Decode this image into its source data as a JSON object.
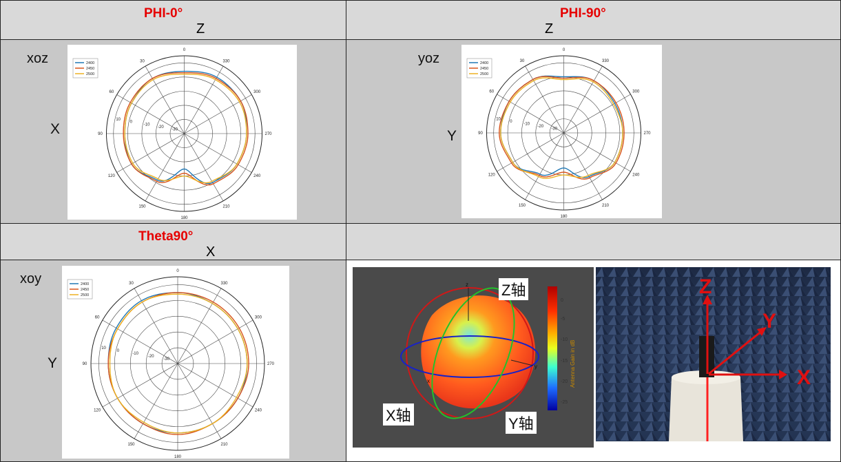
{
  "table": {
    "row1": {
      "left_title": "PHI-0°",
      "left_axis_top": "Z",
      "right_title": "PHI-90°",
      "right_axis_top": "Z"
    },
    "row3": {
      "left_title": "Theta90°",
      "left_axis_top": "X"
    }
  },
  "plots": [
    {
      "id": "xoz",
      "plane_label": "xoz",
      "side_label": "X"
    },
    {
      "id": "yoz",
      "plane_label": "yoz",
      "side_label": "Y"
    },
    {
      "id": "xoy",
      "plane_label": "xoy",
      "side_label": "Y"
    }
  ],
  "chart_data": [
    {
      "type": "polar",
      "angle_ticks": [
        "0",
        "30",
        "60",
        "90",
        "120",
        "150",
        "180",
        "210",
        "240",
        "270",
        "300",
        "330"
      ],
      "radial_ticks": [
        "10",
        "0",
        "-10",
        "-20",
        "-30"
      ],
      "rlim": [
        -40,
        15
      ],
      "legend": "top-left",
      "series": [
        {
          "name": "2400",
          "color": "#1f77b4",
          "values_deg": [
            0,
            30,
            60,
            90,
            120,
            150,
            180,
            210,
            240,
            270,
            300,
            330
          ],
          "values_db": [
            4,
            5,
            3,
            2,
            3,
            -2,
            -15,
            0,
            3,
            4,
            6,
            6
          ]
        },
        {
          "name": "2450",
          "color": "#d95319",
          "values_deg": [
            0,
            30,
            60,
            90,
            120,
            150,
            180,
            210,
            240,
            270,
            300,
            330
          ],
          "values_db": [
            3,
            5,
            4,
            3,
            3,
            -1,
            -12,
            1,
            4,
            5,
            6,
            5
          ]
        },
        {
          "name": "2500",
          "color": "#edb120",
          "values_deg": [
            0,
            30,
            60,
            90,
            120,
            150,
            180,
            210,
            240,
            270,
            300,
            330
          ],
          "values_db": [
            2,
            4,
            3,
            2,
            2,
            -3,
            -10,
            -1,
            3,
            4,
            5,
            4
          ]
        }
      ]
    },
    {
      "type": "polar",
      "angle_ticks": [
        "0",
        "30",
        "60",
        "90",
        "120",
        "150",
        "180",
        "210",
        "240",
        "270",
        "300",
        "330"
      ],
      "radial_ticks": [
        "10",
        "0",
        "-10",
        "-20",
        "-30"
      ],
      "rlim": [
        -40,
        15
      ],
      "legend": "top-left",
      "series": [
        {
          "name": "2400",
          "color": "#1f77b4",
          "values_deg": [
            0,
            30,
            60,
            90,
            120,
            150,
            180,
            210,
            240,
            270,
            300,
            330
          ],
          "values_db": [
            0,
            4,
            5,
            5,
            2,
            -6,
            -15,
            -4,
            2,
            2,
            2,
            3
          ]
        },
        {
          "name": "2450",
          "color": "#d95319",
          "values_deg": [
            0,
            30,
            60,
            90,
            120,
            150,
            180,
            210,
            240,
            270,
            300,
            330
          ],
          "values_db": [
            -1,
            4,
            5,
            6,
            3,
            -5,
            -12,
            -3,
            3,
            3,
            3,
            3
          ]
        },
        {
          "name": "2500",
          "color": "#edb120",
          "values_deg": [
            0,
            30,
            60,
            90,
            120,
            150,
            180,
            210,
            240,
            270,
            300,
            330
          ],
          "values_db": [
            -2,
            3,
            4,
            5,
            2,
            -4,
            -10,
            -5,
            2,
            2,
            1,
            2
          ]
        }
      ]
    },
    {
      "type": "polar",
      "angle_ticks": [
        "0",
        "30",
        "60",
        "90",
        "120",
        "150",
        "180",
        "210",
        "240",
        "270",
        "300",
        "330"
      ],
      "radial_ticks": [
        "10",
        "0",
        "-10",
        "-20",
        "-30"
      ],
      "rlim": [
        -40,
        15
      ],
      "legend": "top-left",
      "series": [
        {
          "name": "2400",
          "color": "#1f77b4",
          "values_deg": [
            0,
            30,
            60,
            90,
            120,
            150,
            180,
            210,
            240,
            270,
            300,
            330
          ],
          "values_db": [
            5,
            6,
            5,
            4,
            4,
            4,
            4,
            4,
            4,
            4,
            4,
            4
          ]
        },
        {
          "name": "2450",
          "color": "#d95319",
          "values_deg": [
            0,
            30,
            60,
            90,
            120,
            150,
            180,
            210,
            240,
            270,
            300,
            330
          ],
          "values_db": [
            5,
            5,
            4,
            4,
            4,
            4,
            5,
            4,
            4,
            5,
            5,
            5
          ]
        },
        {
          "name": "2500",
          "color": "#edb120",
          "values_deg": [
            0,
            30,
            60,
            90,
            120,
            150,
            180,
            210,
            240,
            270,
            300,
            330
          ],
          "values_db": [
            4,
            5,
            4,
            3,
            4,
            3,
            4,
            4,
            3,
            4,
            4,
            4
          ]
        }
      ]
    }
  ],
  "radiation3d": {
    "z_label": "Z轴",
    "x_label": "X轴",
    "y_label": "Y轴",
    "colorbar_title": "Antenna Gain in dB",
    "colorbar_ticks": [
      "0",
      "-5",
      "-10",
      "-15",
      "-20",
      "-25"
    ],
    "axis_small": {
      "z": "z",
      "y": "y",
      "x": "x"
    }
  },
  "photo": {
    "z": "Z",
    "y": "Y",
    "x": "X"
  }
}
